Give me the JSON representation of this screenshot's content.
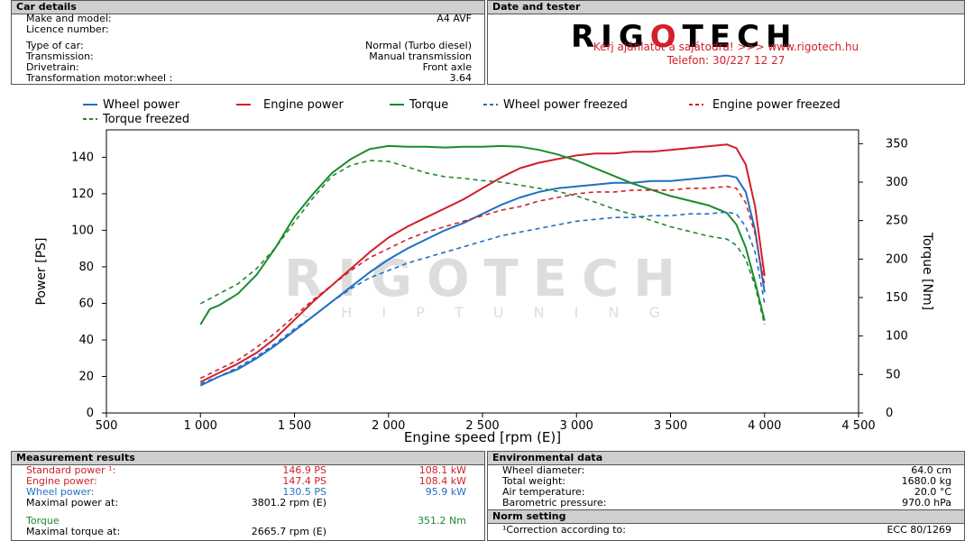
{
  "car": {
    "header": "Car details",
    "make_label": "Make and model:",
    "make_value": "A4 AVF",
    "licence_label": "Licence number:",
    "licence_value": "",
    "type_label": "Type of car:",
    "type_value": "Normal (Turbo diesel)",
    "transmission_label": "Transmission:",
    "transmission_value": "Manual transmission",
    "drivetrain_label": "Drivetrain:",
    "drivetrain_value": "Front axle",
    "ratio_label": "Transformation motor:wheel :",
    "ratio_value": "3.64"
  },
  "tester": {
    "header": "Date and tester",
    "logo_pre": "RIG",
    "logo_mark": "O",
    "logo_post": "TECH",
    "promo": "Kérj ajánlatot a sajátodra!  >>>  www.rigotech.hu",
    "phone": "Telefon: 30/227 12 27"
  },
  "watermark": {
    "main": "RIGOTECH",
    "sub": "C H I P T U N I N G"
  },
  "measurement": {
    "header": "Measurement results",
    "rows": [
      {
        "label": "Standard power ¹:",
        "v1": "146.9 PS",
        "v2": "108.1 kW",
        "color": "#d21f2a"
      },
      {
        "label": "Engine power:",
        "v1": "147.4 PS",
        "v2": "108.4 kW",
        "color": "#d21f2a"
      },
      {
        "label": "Wheel power:",
        "v1": "130.5 PS",
        "v2": "95.9 kW",
        "color": "#1f6fc5"
      },
      {
        "label": "Maximal power at:",
        "v1": "3801.2 rpm (E)",
        "v2": "",
        "color": "#000000"
      },
      {
        "label": "Torque",
        "v1": "",
        "v2": "351.2 Nm",
        "color": "#1c8a2e"
      },
      {
        "label": "Maximal torque at:",
        "v1": "2665.7 rpm (E)",
        "v2": "",
        "color": "#000000"
      }
    ]
  },
  "environment": {
    "header": "Environmental data",
    "rows": [
      {
        "label": "Wheel diameter:",
        "value": "64.0 cm"
      },
      {
        "label": "Total weight:",
        "value": "1680.0 kg"
      },
      {
        "label": "Air temperature:",
        "value": "20.0 °C"
      },
      {
        "label": "Barometric pressure:",
        "value": "970.0 hPa"
      }
    ]
  },
  "norm": {
    "header": "Norm setting",
    "label": "¹Correction according to:",
    "value": "ECC 80/1269"
  },
  "chart_data": {
    "type": "line",
    "xlabel": "Engine speed [rpm (E)]",
    "ylabel": "Power [PS]",
    "y2label": "Torque [Nm]",
    "xlim": [
      500,
      4500
    ],
    "ylim": [
      0,
      155
    ],
    "y2lim": [
      0,
      368
    ],
    "xticks": [
      500,
      1000,
      1500,
      2000,
      2500,
      3000,
      3500,
      4000,
      4500
    ],
    "xtick_labels": [
      "500",
      "1 000",
      "1 500",
      "2 000",
      "2 500",
      "3 000",
      "3 500",
      "4 000",
      "4 500"
    ],
    "yticks": [
      0,
      20,
      40,
      60,
      80,
      100,
      120,
      140
    ],
    "y2ticks": [
      0,
      50,
      100,
      150,
      200,
      250,
      300,
      350
    ],
    "grid": false,
    "legend_position": "top",
    "series": [
      {
        "name": "Wheel power",
        "axis": "left",
        "color": "#1f6fc5",
        "dash": false,
        "x": [
          1000,
          1100,
          1200,
          1300,
          1400,
          1500,
          1600,
          1700,
          1800,
          1900,
          2000,
          2100,
          2200,
          2300,
          2400,
          2500,
          2600,
          2700,
          2800,
          2900,
          3000,
          3100,
          3200,
          3300,
          3400,
          3500,
          3600,
          3700,
          3800,
          3850,
          3900,
          3950,
          4000
        ],
        "y": [
          15,
          20,
          24,
          30,
          37,
          45,
          53,
          61,
          69,
          77,
          84,
          90,
          95,
          100,
          104,
          109,
          114,
          118,
          121,
          123,
          124,
          125,
          126,
          126,
          127,
          127,
          128,
          129,
          130,
          129,
          121,
          100,
          66
        ]
      },
      {
        "name": "Engine power",
        "axis": "left",
        "color": "#d21f2a",
        "dash": false,
        "x": [
          1000,
          1100,
          1200,
          1300,
          1400,
          1500,
          1600,
          1700,
          1800,
          1900,
          2000,
          2100,
          2200,
          2300,
          2400,
          2500,
          2600,
          2700,
          2800,
          2900,
          3000,
          3100,
          3200,
          3300,
          3400,
          3500,
          3600,
          3700,
          3800,
          3850,
          3900,
          3950,
          4000
        ],
        "y": [
          17,
          22,
          27,
          33,
          41,
          51,
          61,
          70,
          79,
          88,
          96,
          102,
          107,
          112,
          117,
          123,
          129,
          134,
          137,
          139,
          141,
          142,
          142,
          143,
          143,
          144,
          145,
          146,
          147,
          145,
          136,
          113,
          75
        ]
      },
      {
        "name": "Torque",
        "axis": "right",
        "color": "#1c8a2e",
        "dash": false,
        "x": [
          1000,
          1050,
          1100,
          1200,
          1300,
          1400,
          1500,
          1600,
          1700,
          1800,
          1900,
          2000,
          2100,
          2200,
          2300,
          2400,
          2500,
          2600,
          2700,
          2800,
          2900,
          3000,
          3100,
          3200,
          3300,
          3400,
          3500,
          3600,
          3700,
          3800,
          3850,
          3900,
          3950,
          4000
        ],
        "y": [
          115,
          135,
          140,
          155,
          180,
          215,
          255,
          285,
          312,
          330,
          343,
          347,
          346,
          346,
          345,
          346,
          346,
          347,
          346,
          342,
          336,
          328,
          318,
          308,
          298,
          290,
          282,
          276,
          270,
          260,
          245,
          215,
          170,
          120
        ]
      },
      {
        "name": "Wheel power freezed",
        "axis": "left",
        "color": "#1f6fc5",
        "dash": true,
        "x": [
          1000,
          1100,
          1200,
          1300,
          1400,
          1500,
          1600,
          1700,
          1800,
          1900,
          2000,
          2100,
          2200,
          2300,
          2400,
          2500,
          2600,
          2700,
          2800,
          2900,
          3000,
          3100,
          3200,
          3300,
          3400,
          3500,
          3600,
          3700,
          3800,
          3850,
          3900,
          3950,
          4000
        ],
        "y": [
          16,
          20,
          25,
          31,
          38,
          46,
          53,
          61,
          68,
          74,
          78,
          82,
          85,
          88,
          91,
          94,
          97,
          99,
          101,
          103,
          105,
          106,
          107,
          107,
          108,
          108,
          109,
          109,
          110,
          109,
          102,
          88,
          60
        ]
      },
      {
        "name": "Engine power freezed",
        "axis": "left",
        "color": "#d21f2a",
        "dash": true,
        "x": [
          1000,
          1100,
          1200,
          1300,
          1400,
          1500,
          1600,
          1700,
          1800,
          1900,
          2000,
          2100,
          2200,
          2300,
          2400,
          2500,
          2600,
          2700,
          2800,
          2900,
          3000,
          3100,
          3200,
          3300,
          3400,
          3500,
          3600,
          3700,
          3800,
          3850,
          3900,
          3950,
          4000
        ],
        "y": [
          19,
          24,
          29,
          36,
          44,
          53,
          62,
          70,
          78,
          85,
          90,
          95,
          99,
          102,
          105,
          108,
          111,
          113,
          116,
          118,
          120,
          121,
          121,
          122,
          122,
          122,
          123,
          123,
          124,
          123,
          115,
          98,
          70
        ]
      },
      {
        "name": "Torque freezed",
        "axis": "right",
        "color": "#1c8a2e",
        "dash": true,
        "x": [
          1000,
          1100,
          1200,
          1300,
          1400,
          1500,
          1600,
          1700,
          1800,
          1900,
          2000,
          2100,
          2200,
          2300,
          2400,
          2500,
          2600,
          2700,
          2800,
          2900,
          3000,
          3100,
          3200,
          3300,
          3400,
          3500,
          3600,
          3700,
          3800,
          3850,
          3900,
          3950,
          4000
        ],
        "y": [
          142,
          155,
          168,
          188,
          215,
          248,
          280,
          308,
          322,
          328,
          327,
          320,
          312,
          307,
          305,
          302,
          300,
          296,
          292,
          288,
          282,
          274,
          265,
          258,
          250,
          242,
          236,
          230,
          226,
          218,
          200,
          165,
          115
        ]
      }
    ]
  }
}
